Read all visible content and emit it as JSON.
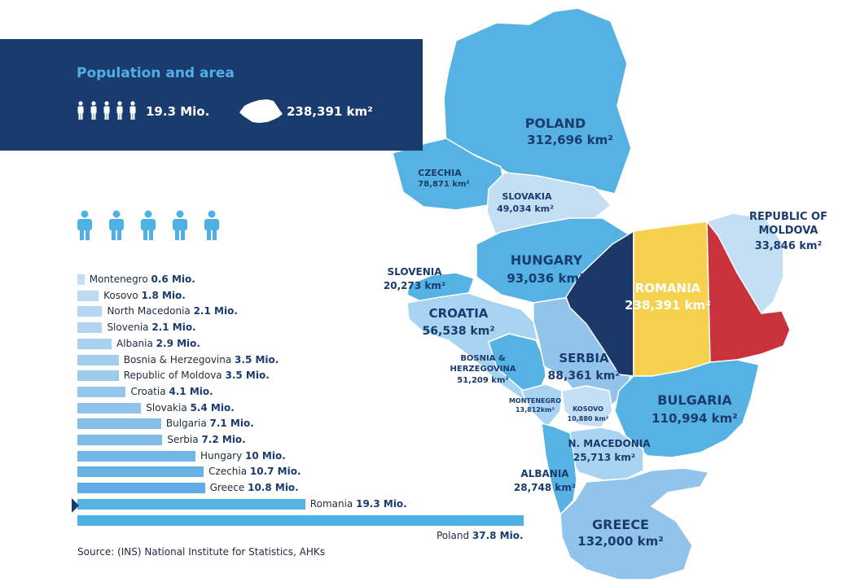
{
  "header": {
    "title": "Population and area",
    "population": "19.3 Mio.",
    "area": "238,391 km²",
    "people_icon": "person-icon",
    "country_icon": "romania-silhouette-icon"
  },
  "colors": {
    "header_bg": "#1a3b6e",
    "title": "#4fb0e6",
    "map_mid": "#55b2e3",
    "map_light": "#a9d4f1",
    "map_pale": "#c4def4",
    "map_mid2": "#92c3ea",
    "romania_blue": "#1b3869",
    "romania_yellow": "#f5d14e",
    "romania_red": "#c8323a"
  },
  "map": {
    "labels": {
      "poland_name": "POLAND",
      "poland_area": "312,696 km²",
      "czechia_name": "CZECHIA",
      "czechia_area": "78,871 km²",
      "slovakia_name": "SLOVAKIA",
      "slovakia_area": "49,034 km²",
      "moldova_name1": "REPUBLIC OF",
      "moldova_name2": "MOLDOVA",
      "moldova_area": "33,846 km²",
      "hungary_name": "HUNGARY",
      "hungary_area": "93,036 km²",
      "slovenia_name": "SLOVENIA",
      "slovenia_area": "20,273 km²",
      "romania_name": "ROMANIA",
      "romania_area": "238,391 km²",
      "croatia_name": "CROATIA",
      "croatia_area": "56,538 km²",
      "bosnia_name1": "BOSNIA &",
      "bosnia_name2": "HERZEGOVINA",
      "bosnia_area": "51,209 km²",
      "serbia_name": "SERBIA",
      "serbia_area": "88,361 km²",
      "bulgaria_name": "BULGARIA",
      "bulgaria_area": "110,994 km²",
      "montenegro_name": "MONTENEGRO",
      "montenegro_area": "13,812km²",
      "kosovo_name": "KOSOVO",
      "kosovo_area": "10,880 km²",
      "macedonia_name": "N. MACEDONIA",
      "macedonia_area": "25,713 km²",
      "albania_name": "ALBANIA",
      "albania_area": "28,748 km²",
      "greece_name": "GREECE",
      "greece_area": "132,000 km²"
    }
  },
  "chart_data": {
    "type": "bar",
    "orientation": "horizontal",
    "unit": "Mio.",
    "categories": [
      "Montenegro",
      "Kosovo",
      "North Macedonia",
      "Slovenia",
      "Albania",
      "Bosnia & Herzegovina",
      "Republic of Moldova",
      "Croatia",
      "Slovakia",
      "Bulgaria",
      "Serbia",
      "Hungary",
      "Czechia",
      "Greece",
      "Romania",
      "Poland"
    ],
    "values": [
      0.6,
      1.8,
      2.1,
      2.1,
      2.9,
      3.5,
      3.5,
      4.1,
      5.4,
      7.1,
      7.2,
      10,
      10.7,
      10.8,
      19.3,
      37.8
    ],
    "value_labels": [
      "0.6 Mio.",
      "1.8 Mio.",
      "2.1 Mio.",
      "2.1 Mio.",
      "2.9 Mio.",
      "3.5 Mio.",
      "3.5 Mio.",
      "4.1 Mio.",
      "5.4 Mio.",
      "7.1 Mio.",
      "7.2 Mio.",
      "10 Mio.",
      "10.7 Mio.",
      "10.8 Mio.",
      "19.3 Mio.",
      "37.8 Mio."
    ],
    "highlight": "Romania"
  },
  "source": "Source: (INS) National Institute for Statistics, AHKs"
}
